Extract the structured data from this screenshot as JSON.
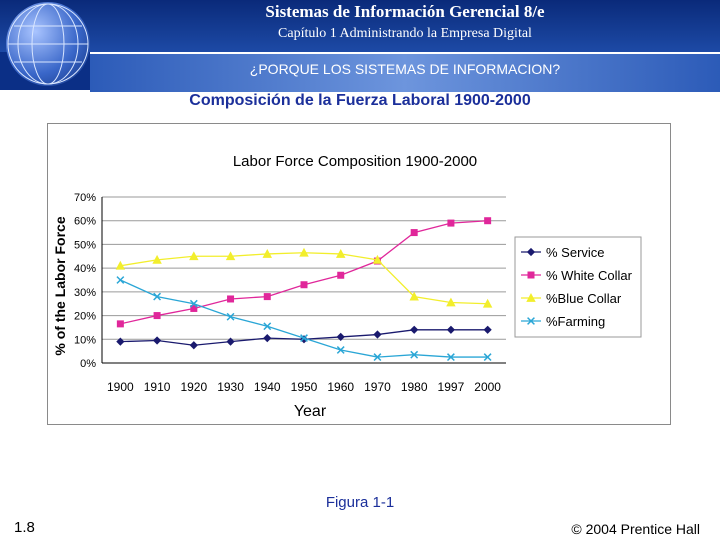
{
  "header": {
    "book_title": "Sistemas de Información Gerencial 8/e",
    "chapter_title": "Capítulo 1 Administrando la Empresa Digital",
    "section_title": "¿PORQUE LOS SISTEMAS DE INFORMACION?"
  },
  "slide_title": "Composición de la Fuerza Laboral 1900-2000",
  "figure_caption": "Figura 1-1",
  "slide_number": "1.8",
  "copyright": "© 2004 Prentice Hall",
  "colors": {
    "header": "#0b2f86",
    "title": "#1b2f9a",
    "service": "#1a1a6e",
    "white_collar": "#e0279a",
    "blue_collar": "#f2ee2c",
    "farming": "#2aa6d6"
  },
  "chart_data": {
    "type": "line",
    "title": "Labor Force Composition 1900-2000",
    "xlabel": "Year",
    "ylabel": "% of the Labor Force",
    "categories": [
      "1900",
      "1910",
      "1920",
      "1930",
      "1940",
      "1950",
      "1960",
      "1970",
      "1980",
      "1997",
      "2000"
    ],
    "yticks": [
      "0%",
      "10%",
      "20%",
      "30%",
      "40%",
      "50%",
      "60%",
      "70%"
    ],
    "ylim": [
      0,
      70
    ],
    "grid": true,
    "legend_position": "right",
    "series": [
      {
        "name": "% Service",
        "marker": "diamond",
        "values": [
          9,
          9.5,
          7.5,
          9,
          10.5,
          10,
          11,
          12,
          14,
          14,
          14
        ]
      },
      {
        "name": "% White Collar",
        "marker": "square",
        "values": [
          16.5,
          20,
          23,
          27,
          28,
          33,
          37,
          43,
          55,
          59,
          60
        ]
      },
      {
        "name": "%Blue Collar",
        "marker": "triangle",
        "values": [
          41,
          43.5,
          45,
          45,
          46,
          46.5,
          46,
          43.5,
          28,
          25.5,
          25
        ]
      },
      {
        "name": "%Farming",
        "marker": "x",
        "values": [
          35,
          28,
          25,
          19.5,
          15.5,
          10.5,
          5.5,
          2.5,
          3.5,
          2.5,
          2.5
        ]
      }
    ]
  }
}
